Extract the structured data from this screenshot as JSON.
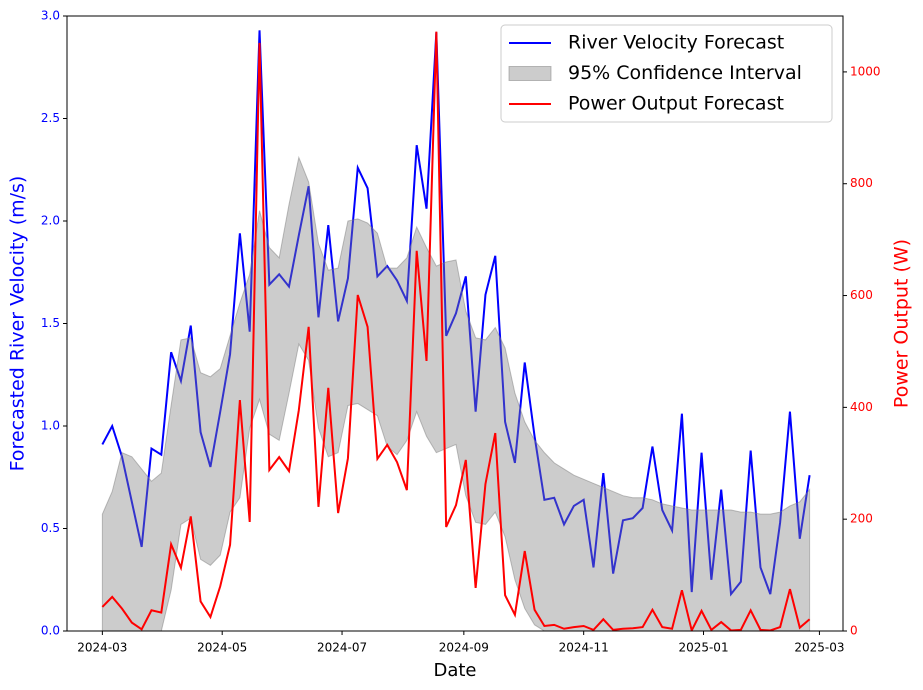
{
  "chart_data": {
    "type": "line",
    "xlabel": "Date",
    "ylabel": "Forecasted River Velocity (m/s)",
    "y2label": "Power Output (W)",
    "x": [
      "2024-03-01",
      "2024-03-06",
      "2024-03-11",
      "2024-03-16",
      "2024-03-21",
      "2024-03-26",
      "2024-03-31",
      "2024-04-05",
      "2024-04-10",
      "2024-04-15",
      "2024-04-20",
      "2024-04-25",
      "2024-04-30",
      "2024-05-05",
      "2024-05-10",
      "2024-05-15",
      "2024-05-20",
      "2024-05-25",
      "2024-05-30",
      "2024-06-04",
      "2024-06-09",
      "2024-06-14",
      "2024-06-19",
      "2024-06-24",
      "2024-06-29",
      "2024-07-04",
      "2024-07-09",
      "2024-07-14",
      "2024-07-19",
      "2024-07-24",
      "2024-07-29",
      "2024-08-03",
      "2024-08-08",
      "2024-08-13",
      "2024-08-18",
      "2024-08-23",
      "2024-08-28",
      "2024-09-02",
      "2024-09-07",
      "2024-09-12",
      "2024-09-17",
      "2024-09-22",
      "2024-09-27",
      "2024-10-02",
      "2024-10-07",
      "2024-10-12",
      "2024-10-17",
      "2024-10-22",
      "2024-10-27",
      "2024-11-01",
      "2024-11-06",
      "2024-11-11",
      "2024-11-16",
      "2024-11-21",
      "2024-11-26",
      "2024-12-01",
      "2024-12-06",
      "2024-12-11",
      "2024-12-16",
      "2024-12-21",
      "2024-12-26",
      "2024-12-31",
      "2025-01-05",
      "2025-01-10",
      "2025-01-15",
      "2025-01-20",
      "2025-01-25",
      "2025-01-30",
      "2025-02-04",
      "2025-02-09",
      "2025-02-14",
      "2025-02-19",
      "2025-02-24"
    ],
    "series": [
      {
        "name": "River Velocity Forecast",
        "color": "#0000ff",
        "values": [
          0.91,
          1.0,
          0.85,
          0.63,
          0.41,
          0.89,
          0.86,
          1.36,
          1.22,
          1.49,
          0.97,
          0.8,
          1.07,
          1.35,
          1.94,
          1.46,
          2.93,
          1.69,
          1.74,
          1.68,
          1.93,
          2.17,
          1.53,
          1.98,
          1.51,
          1.72,
          2.26,
          2.16,
          1.73,
          1.78,
          1.71,
          1.61,
          2.37,
          2.06,
          2.92,
          1.44,
          1.55,
          1.73,
          1.07,
          1.64,
          1.83,
          1.02,
          0.82,
          1.31,
          0.95,
          0.64,
          0.65,
          0.52,
          0.61,
          0.64,
          0.31,
          0.77,
          0.28,
          0.54,
          0.55,
          0.6,
          0.9,
          0.59,
          0.49,
          1.06,
          0.19,
          0.87,
          0.25,
          0.69,
          0.18,
          0.24,
          0.88,
          0.31,
          0.18,
          0.53,
          1.07,
          0.45,
          0.76
        ]
      },
      {
        "name": "95% Confidence Interval",
        "color": "#808080",
        "upper": [
          0.57,
          0.68,
          0.87,
          0.85,
          0.79,
          0.73,
          0.77,
          1.1,
          1.42,
          1.43,
          1.26,
          1.24,
          1.28,
          1.44,
          1.6,
          1.74,
          2.05,
          1.87,
          1.82,
          2.08,
          2.31,
          2.19,
          1.89,
          1.76,
          1.77,
          2.0,
          2.01,
          1.99,
          1.94,
          1.77,
          1.77,
          1.82,
          1.97,
          1.87,
          1.78,
          1.8,
          1.81,
          1.56,
          1.43,
          1.42,
          1.48,
          1.38,
          1.16,
          1.02,
          0.93,
          0.87,
          0.82,
          0.79,
          0.76,
          0.74,
          0.72,
          0.7,
          0.68,
          0.66,
          0.65,
          0.65,
          0.64,
          0.62,
          0.61,
          0.6,
          0.59,
          0.59,
          0.59,
          0.59,
          0.59,
          0.58,
          0.58,
          0.57,
          0.57,
          0.58,
          0.61,
          0.63,
          0.69
        ],
        "lower": [
          0,
          0,
          0,
          0,
          0,
          0,
          0,
          0.2,
          0.52,
          0.55,
          0.35,
          0.32,
          0.37,
          0.58,
          0.65,
          0.99,
          1.13,
          0.96,
          0.93,
          1.16,
          1.4,
          1.32,
          0.99,
          0.85,
          0.87,
          1.1,
          1.11,
          1.08,
          1.05,
          0.9,
          0.86,
          0.93,
          1.07,
          0.95,
          0.87,
          0.89,
          0.91,
          0.66,
          0.53,
          0.52,
          0.58,
          0.46,
          0.25,
          0.11,
          0.03,
          0,
          0,
          0,
          0,
          0,
          0,
          0,
          0,
          0,
          0,
          0,
          0,
          0,
          0,
          0,
          0,
          0,
          0,
          0,
          0,
          0,
          0,
          0,
          0,
          0,
          0,
          0,
          0
        ]
      },
      {
        "name": "Power Output Forecast",
        "color": "#ff0000",
        "axis": "y2",
        "values": [
          43,
          61,
          40,
          15,
          3,
          37,
          33,
          155,
          113,
          205,
          53,
          25,
          80,
          154,
          413,
          195,
          1052,
          288,
          311,
          286,
          395,
          544,
          222,
          435,
          211,
          309,
          601,
          544,
          308,
          333,
          302,
          252,
          680,
          483,
          1072,
          186,
          225,
          306,
          77,
          263,
          354,
          64,
          29,
          143,
          38,
          9,
          11,
          4,
          7,
          9,
          2,
          21,
          2,
          4,
          5,
          7,
          38,
          7,
          4,
          73,
          1,
          36,
          2,
          16,
          1,
          2,
          37,
          2,
          1,
          7,
          75,
          6,
          21
        ]
      }
    ],
    "xlim": [
      "2024-02-12",
      "2025-03-13"
    ],
    "xticks": [
      "2024-03",
      "2024-05",
      "2024-07",
      "2024-09",
      "2024-11",
      "2025-01",
      "2025-03"
    ],
    "ylim": [
      0,
      3.0
    ],
    "yticks": [
      {
        "value": 0,
        "label": "0.0"
      },
      0.5,
      {
        "value": 1,
        "label": "1.0"
      },
      1.5,
      {
        "value": 2,
        "label": "2.0"
      },
      2.5,
      {
        "value": 3,
        "label": "3.0"
      }
    ],
    "y2lim": [
      0,
      1100
    ],
    "y2ticks": [
      0,
      200,
      400,
      600,
      800,
      1000
    ],
    "legend": "upper right"
  }
}
